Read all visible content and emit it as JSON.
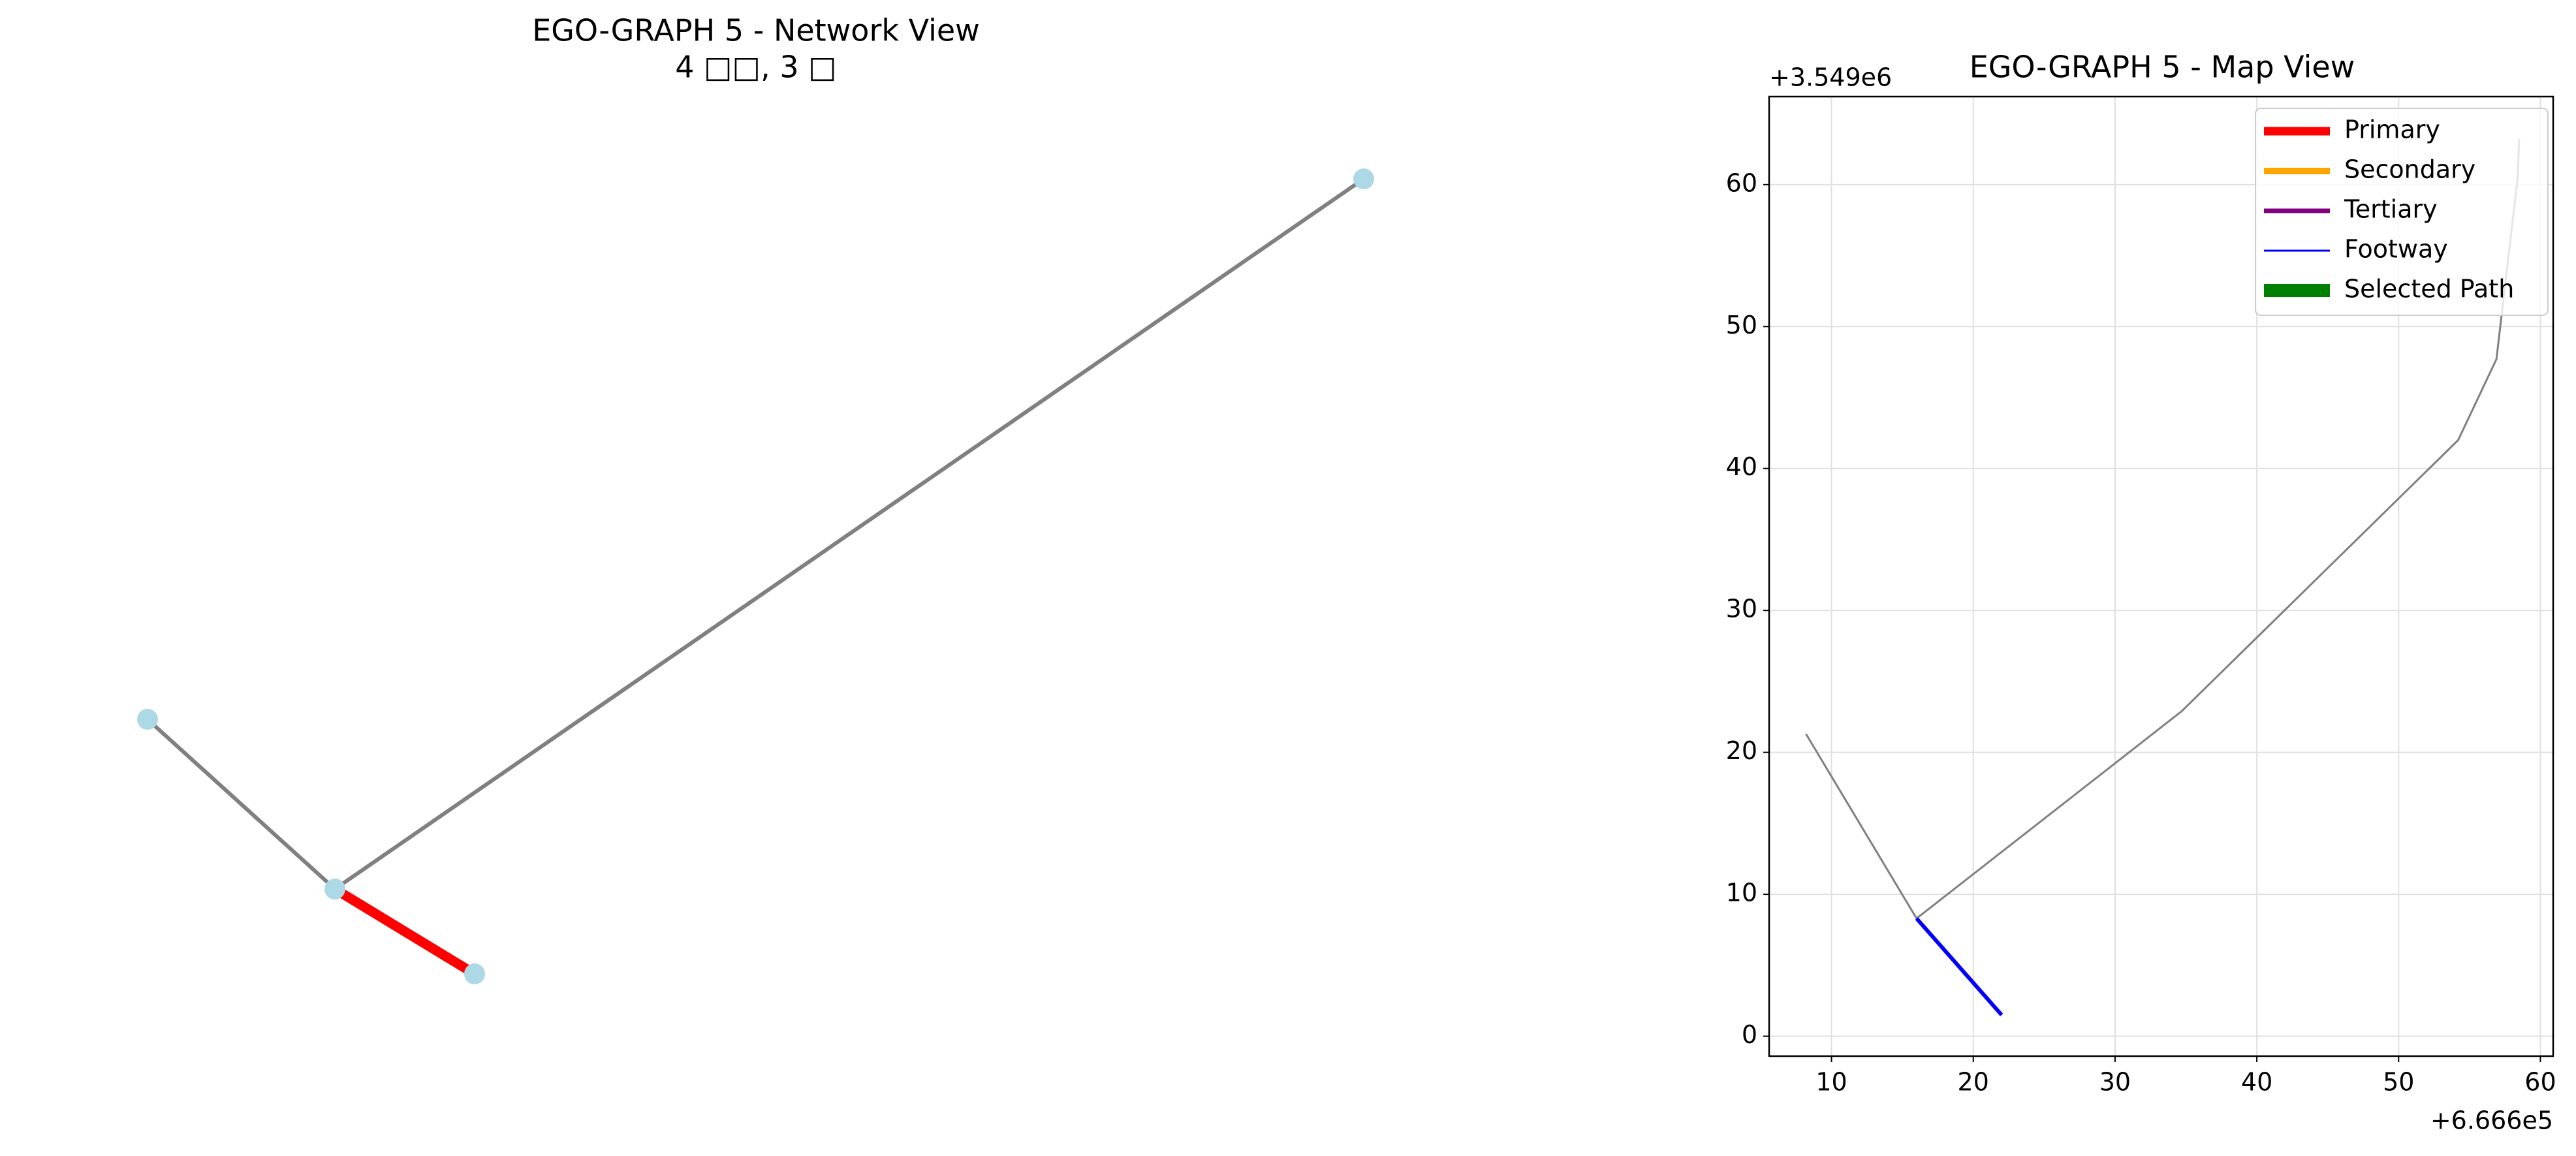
{
  "chart_data": [
    {
      "type": "network",
      "title": "EGO-GRAPH 5 - Network View",
      "subtitle": "4 □□, 3 □"
    },
    {
      "type": "line",
      "title": "EGO-GRAPH 5 - Map View",
      "x_offset_label": "+6.666e5",
      "y_offset_label": "+3.549e6",
      "xlim": [
        5.6,
        60.9
      ],
      "ylim": [
        -1.4,
        66.2
      ],
      "xticks": [
        10,
        20,
        30,
        40,
        50,
        60
      ],
      "yticks": [
        0,
        10,
        20,
        30,
        40,
        50,
        60
      ],
      "grid": true,
      "series": [
        {
          "color": "#808080",
          "x": [
            8.2,
            16.0
          ],
          "values": [
            21.3,
            8.3
          ]
        },
        {
          "color": "#808080",
          "x": [
            16.0,
            34.7,
            54.2,
            56.9,
            58.4,
            58.5
          ],
          "values": [
            8.3,
            22.9,
            42.0,
            47.7,
            60.5,
            63.2
          ]
        },
        {
          "color": "#0000ff",
          "x": [
            16.0,
            22.0
          ],
          "values": [
            8.3,
            1.5
          ]
        }
      ],
      "legend": [
        {
          "name": "Primary",
          "color": "#ff0000"
        },
        {
          "name": "Secondary",
          "color": "#ffa500"
        },
        {
          "name": "Tertiary",
          "color": "#800080"
        },
        {
          "name": "Footway",
          "color": "#0000ff"
        },
        {
          "name": "Selected Path",
          "color": "#008000"
        }
      ],
      "legend_position": "upper right"
    }
  ]
}
